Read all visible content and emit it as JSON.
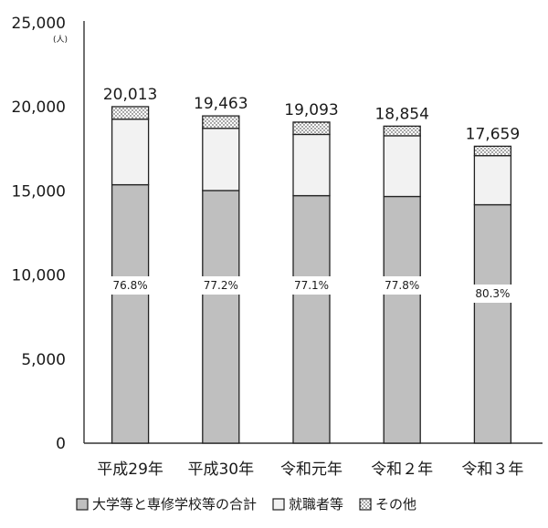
{
  "chart_data": {
    "type": "bar",
    "stacked": true,
    "unit": "(人)",
    "categories": [
      "平成29年",
      "平成30年",
      "令和元年",
      "令和２年",
      "令和３年"
    ],
    "series": [
      {
        "name": "大学等と専修学校等の合計",
        "values": [
          15370,
          15025,
          14720,
          14670,
          14180
        ],
        "color": "#bfbfbf"
      },
      {
        "name": "就職者等",
        "values": [
          3900,
          3700,
          3640,
          3610,
          2920
        ],
        "color": "#f2f2f2"
      },
      {
        "name": "その他",
        "values": [
          743,
          738,
          733,
          574,
          559
        ],
        "color": "dots"
      }
    ],
    "totals": [
      "20,013",
      "19,463",
      "19,093",
      "18,854",
      "17,659"
    ],
    "percent_labels": [
      "76.8%",
      "77.2%",
      "77.1%",
      "77.8%",
      "80.3%"
    ],
    "ylim": [
      0,
      25000
    ],
    "yticks": [
      "0",
      "5,000",
      "10,000",
      "15,000",
      "20,000",
      "25,000"
    ],
    "ytick_values": [
      0,
      5000,
      10000,
      15000,
      20000,
      25000
    ],
    "grid": false,
    "legend_position": "bottom"
  }
}
